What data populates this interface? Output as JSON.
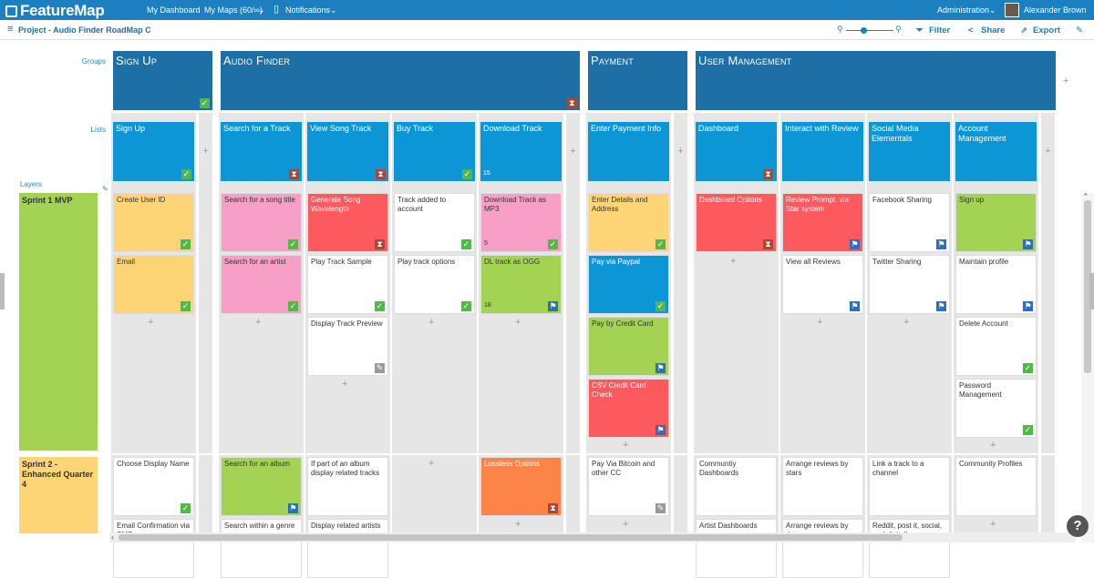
{
  "topbar": {
    "logo": "FeatureMap",
    "nav": [
      "My Dashboard",
      "My Maps (60/∞)",
      "Notifications"
    ],
    "admin": "Administration",
    "user": "Alexander Brown"
  },
  "subbar": {
    "project": "Project - Audio Finder RoadMap C",
    "filter": "Filter",
    "share": "Share",
    "export": "Export"
  },
  "row_labels": {
    "groups": "Groups",
    "lists": "Lists",
    "layers": "Layers"
  },
  "groups": [
    "Sign Up",
    "Audio Finder",
    "Payment",
    "User Management"
  ],
  "lists": [
    "Sign Up",
    "Search for a Track",
    "View Song Track",
    "Buy Track",
    "Download Track",
    "Enter Payment Info",
    "Dashboard",
    "Interact with Review",
    "Social Media Elementals",
    "Account Management"
  ],
  "layers": [
    "Sprint 1 MVP",
    "Sprint 2 - Enhanced Quarter 4"
  ],
  "cards": {
    "c1": [
      "Create User ID",
      "Email"
    ],
    "c2": [
      "Search for a song title",
      "Search for an artist"
    ],
    "c3": [
      "Generate Song Wavelength",
      "Play Track Sample",
      "Display Track Preview"
    ],
    "c4": [
      "Track added to account",
      "Play track options"
    ],
    "c5": [
      "Download Track as MP3",
      "DL track as OGG"
    ],
    "c6": [
      "Enter Details and Address",
      "Pay via Paypal",
      "Pay by Credit Card",
      "CSV Credit Card Check"
    ],
    "c7": [
      "Dashboard Options"
    ],
    "c8": [
      "Review Prompt, via Star system",
      "View all Reviews"
    ],
    "c9": [
      "Facebook Sharing",
      "Twitter Sharing"
    ],
    "c10": [
      "Sign up",
      "Maintain profile",
      "Delete Account",
      "Password Management"
    ]
  },
  "sprint2": {
    "c1": [
      "Choose Display Name",
      "Email Confirmation via SMS"
    ],
    "c2": [
      "Search for an album",
      "Search within a genre"
    ],
    "c3": [
      "If part of an album display related tracks",
      "Display related artists"
    ],
    "c5": [
      "Lossless Options"
    ],
    "c6": [
      "Pay Via Bitcoin and other CC"
    ],
    "c7": [
      "Communtiy Dashboards",
      "Artist Dashboards"
    ],
    "c8": [
      "Arrange reviews by stars",
      "Arrange reviews by date"
    ],
    "c9": [
      "Link a track to a channel",
      "Reddit, post it, social, and digitally"
    ],
    "c10": [
      "Community Profiles"
    ]
  },
  "counts": {
    "download_list": "15",
    "mp3": "5",
    "ogg": "18"
  },
  "colors": {
    "topbar": "#1c7fbf",
    "group": "#1d6fa5",
    "list": "#0d96d6",
    "yellow": "#fdd576",
    "pink": "#f79fc6",
    "red": "#fd5a5f",
    "green": "#a4d353",
    "blue": "#0d96d6",
    "orange": "#fd8448"
  },
  "icons": {
    "plus": "+",
    "check": "✓",
    "hourglass": "⧗",
    "flag": "⚑",
    "edit": "✎"
  }
}
